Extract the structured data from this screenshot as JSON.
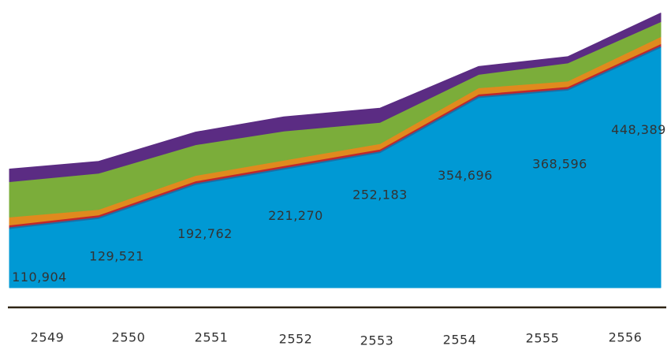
{
  "chart_data": {
    "type": "area",
    "stacked": true,
    "categories": [
      "2549",
      "2550",
      "2551",
      "2552",
      "2553",
      "2554",
      "2555",
      "2556"
    ],
    "series": [
      {
        "color": "#0099d4",
        "values": [
          110904,
          129521,
          192762,
          221270,
          252183,
          354696,
          368596,
          448389
        ],
        "value_labels": [
          "110,904",
          "129,521",
          "192,762",
          "221,270",
          "252,183",
          "354,696",
          "368,596",
          "448,389"
        ]
      },
      {
        "color": "#c0272d",
        "values": [
          5900,
          5900,
          5900,
          5900,
          5900,
          5900,
          5900,
          5900
        ]
      },
      {
        "color": "#e08a1e",
        "values": [
          14700,
          10300,
          10300,
          10300,
          10300,
          11700,
          10300,
          13200
        ]
      },
      {
        "color": "#7bad3a",
        "values": [
          66000,
          67500,
          57300,
          54300,
          39600,
          25000,
          33800,
          27900
        ]
      },
      {
        "color": "#5b2c83",
        "values": [
          23500,
          22000,
          23500,
          26400,
          26400,
          14700,
          11700,
          16100
        ]
      }
    ],
    "ylim": [
      0,
      530000
    ]
  }
}
